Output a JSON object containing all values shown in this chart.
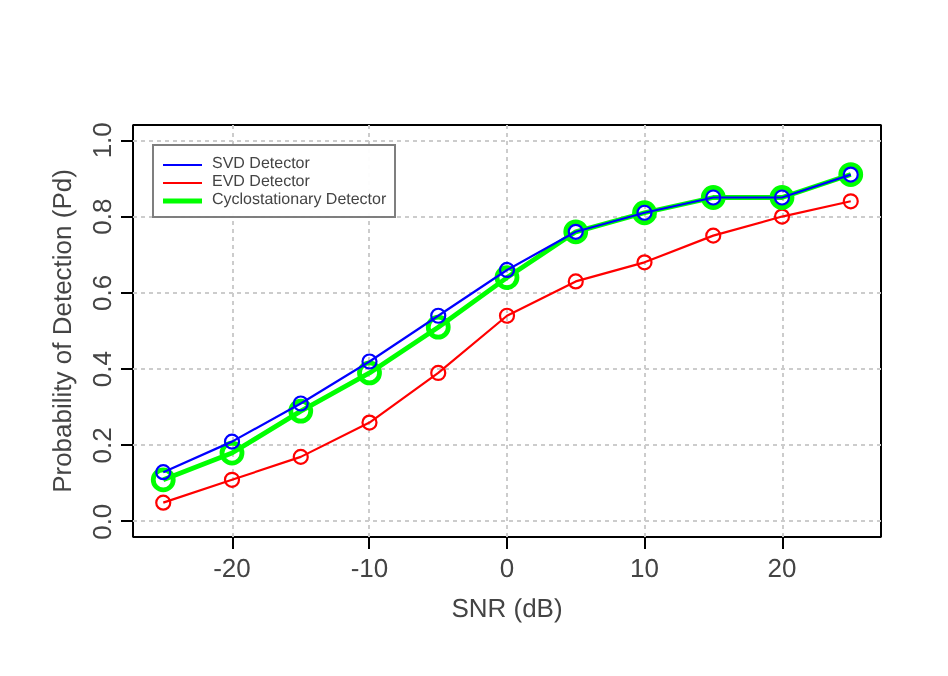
{
  "chart_data": {
    "type": "line",
    "xlabel": "SNR (dB)",
    "ylabel": "Probability of Detection (Pd)",
    "x": [
      -25,
      -20,
      -15,
      -10,
      -5,
      0,
      5,
      10,
      15,
      20,
      25
    ],
    "series": [
      {
        "name": "SVD Detector",
        "color": "#0000ff",
        "values": [
          0.13,
          0.21,
          0.31,
          0.42,
          0.54,
          0.66,
          0.76,
          0.81,
          0.85,
          0.85,
          0.91
        ]
      },
      {
        "name": "EVD Detector",
        "color": "#ff0000",
        "values": [
          0.05,
          0.11,
          0.17,
          0.26,
          0.39,
          0.54,
          0.63,
          0.68,
          0.75,
          0.8,
          0.84
        ]
      },
      {
        "name": "Cyclostationary Detector",
        "color": "#00ff00",
        "values": [
          0.11,
          0.18,
          0.29,
          0.39,
          0.51,
          0.64,
          0.76,
          0.81,
          0.85,
          0.85,
          0.91
        ]
      }
    ],
    "xlim": [
      -27.2,
      27.2
    ],
    "ylim": [
      -0.04,
      1.04
    ],
    "xticks": [
      -20,
      -10,
      0,
      10,
      20
    ],
    "yticks": [
      {
        "value": 0,
        "label": "0.0"
      },
      0.2,
      0.4,
      0.6,
      0.8,
      {
        "value": 1,
        "label": "1.0"
      }
    ],
    "grid": true,
    "legend": "top left",
    "marker": "circle",
    "line_style": "solid"
  }
}
